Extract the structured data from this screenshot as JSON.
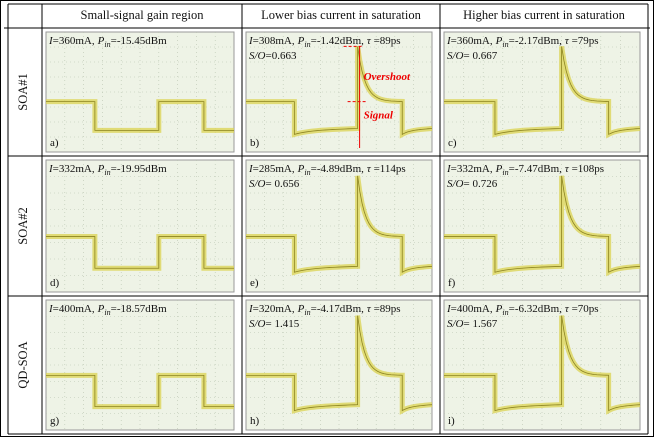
{
  "column_headers": [
    "Small-signal gain region",
    "Lower bias current in saturation",
    "Higher bias current in saturation"
  ],
  "labels": {
    "current": "I",
    "power": "P",
    "power_sub": "in",
    "tau": "τ",
    "ratio": "S/O"
  },
  "rows": [
    {
      "name": "SOA#1",
      "panels": [
        {
          "tag": "a)",
          "current": "=360mA,",
          "power": "=-15.45dBm"
        },
        {
          "tag": "b)",
          "current": "=308mA,",
          "power": "=-1.42dBm,",
          "tau": " =89ps",
          "ratio": "=0.663",
          "annotations": [
            "Overshoot",
            "Signal"
          ]
        },
        {
          "tag": "c)",
          "current": "=360mA,",
          "power": "=-2.17dBm,",
          "tau": " =79ps",
          "ratio": "= 0.667"
        }
      ]
    },
    {
      "name": "SOA#2",
      "panels": [
        {
          "tag": "d)",
          "current": "=332mA,",
          "power": "=-19.95dBm"
        },
        {
          "tag": "e)",
          "current": "=285mA,",
          "power": "=-4.89dBm,",
          "tau": " =114ps",
          "ratio": "= 0.656"
        },
        {
          "tag": "f)",
          "current": "=332mA,",
          "power": "=-7.47dBm,",
          "tau": " =108ps",
          "ratio": "= 0.726"
        }
      ]
    },
    {
      "name": "QD-SOA",
      "panels": [
        {
          "tag": "g)",
          "current": "=400mA,",
          "power": "=-18.57dBm"
        },
        {
          "tag": "h)",
          "current": "=320mA,",
          "power": "=-4.17dBm,",
          "tau": " =89ps",
          "ratio": "= 1.415"
        },
        {
          "tag": "i)",
          "current": "=400mA,",
          "power": "=-6.32dBm,",
          "tau": " =70ps",
          "ratio": "= 1.567"
        }
      ]
    }
  ]
}
